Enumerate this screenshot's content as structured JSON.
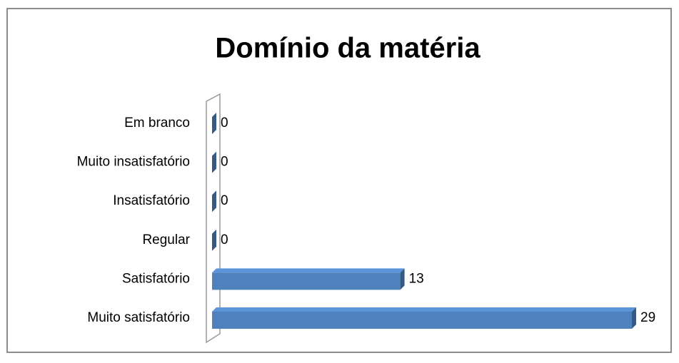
{
  "chart_data": {
    "type": "bar",
    "orientation": "horizontal",
    "title": "Domínio da matéria",
    "categories": [
      "Em branco",
      "Muito insatisfatório",
      "Insatisfatório",
      "Regular",
      "Satisfatório",
      "Muito satisfatório"
    ],
    "values": [
      0,
      0,
      0,
      0,
      13,
      29
    ],
    "color": "#4f81bd"
  }
}
